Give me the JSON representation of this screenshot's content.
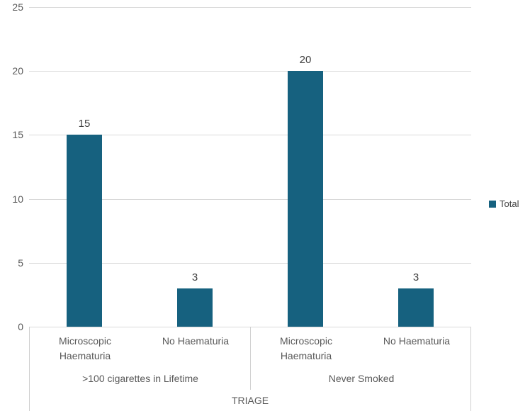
{
  "chart_data": {
    "type": "bar",
    "title": "",
    "xlabel": "TRIAGE",
    "ylabel": "",
    "ylim": [
      0,
      25
    ],
    "yticks": [
      0,
      5,
      10,
      15,
      20,
      25
    ],
    "grid": true,
    "legend_position": "right",
    "bar_color": "#16617f",
    "gridline_color": "#d9d9d9",
    "categories": [
      "Microscopic Haematuria",
      "No Haematuria",
      "Microscopic Haematuria",
      "No Haematuria"
    ],
    "groups": [
      {
        "label": ">100 cigarettes in Lifetime",
        "categories": [
          "Microscopic Haematuria",
          "No Haematuria"
        ],
        "values": [
          15,
          3
        ]
      },
      {
        "label": "Never Smoked",
        "categories": [
          "Microscopic Haematuria",
          "No Haematuria"
        ],
        "values": [
          20,
          3
        ]
      }
    ],
    "series": [
      {
        "name": "Total",
        "values": [
          15,
          3,
          20,
          3
        ]
      }
    ],
    "data_labels": [
      15,
      3,
      20,
      3
    ]
  }
}
